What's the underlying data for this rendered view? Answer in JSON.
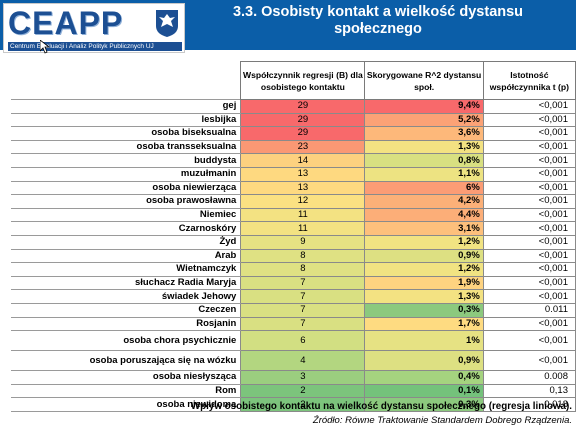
{
  "header": {
    "title_line1": "3.3. Osobisty kontakt a wielkość dystansu",
    "title_line2": "społecznego",
    "bg_color": "#0b5ea8"
  },
  "logo": {
    "text": "CEAPP",
    "subtitle": "Centrum Ewaluacji i Analiz Polityk Publicznych UJ",
    "icon": "eagle-emblem-icon"
  },
  "table": {
    "headers": {
      "coef": "Współczynnik regresji (B) dla osobistego kontaktu",
      "r2": "Skorygowane R^2 dystansu społ.",
      "p": "Istotność współczynnika t (p)"
    },
    "rows": [
      {
        "label": "gej",
        "coef": "29",
        "r2": "9,4%",
        "p": "<0,001",
        "coef_color": "#f8696b",
        "r2_color": "#f8696b"
      },
      {
        "label": "lesbijka",
        "coef": "29",
        "r2": "5,2%",
        "p": "<0,001",
        "coef_color": "#f8696b",
        "r2_color": "#fba276"
      },
      {
        "label": "osoba biseksualna",
        "coef": "29",
        "r2": "3,6%",
        "p": "<0,001",
        "coef_color": "#f8696b",
        "r2_color": "#fdb87a"
      },
      {
        "label": "osoba transseksualna",
        "coef": "23",
        "r2": "1,3%",
        "p": "<0,001",
        "coef_color": "#fa9874",
        "r2_color": "#f3e282"
      },
      {
        "label": "buddysta",
        "coef": "14",
        "r2": "0,8%",
        "p": "<0,001",
        "coef_color": "#fdd17f",
        "r2_color": "#d8e081"
      },
      {
        "label": "muzułmanin",
        "coef": "13",
        "r2": "1,1%",
        "p": "<0,001",
        "coef_color": "#fed980",
        "r2_color": "#ede382"
      },
      {
        "label": "osoba niewierząca",
        "coef": "13",
        "r2": "6%",
        "p": "<0,001",
        "coef_color": "#fed980",
        "r2_color": "#fb9c75"
      },
      {
        "label": "osoba prawosławna",
        "coef": "12",
        "r2": "4,2%",
        "p": "<0,001",
        "coef_color": "#fbe182",
        "r2_color": "#fcb078"
      },
      {
        "label": "Niemiec",
        "coef": "11",
        "r2": "4,4%",
        "p": "<0,001",
        "coef_color": "#f3e282",
        "r2_color": "#fcae78"
      },
      {
        "label": "Czarnoskóry",
        "coef": "11",
        "r2": "3,1%",
        "p": "<0,001",
        "coef_color": "#f3e282",
        "r2_color": "#fdc07c"
      },
      {
        "label": "Żyd",
        "coef": "9",
        "r2": "1,2%",
        "p": "<0,001",
        "coef_color": "#e6e283",
        "r2_color": "#f1e382"
      },
      {
        "label": "Arab",
        "coef": "8",
        "r2": "0,9%",
        "p": "<0,001",
        "coef_color": "#dfe183",
        "r2_color": "#dde082"
      },
      {
        "label": "Wietnamczyk",
        "coef": "8",
        "r2": "1,2%",
        "p": "<0,001",
        "coef_color": "#dfe183",
        "r2_color": "#f1e382"
      },
      {
        "label": "słuchacz Radia Maryja",
        "coef": "7",
        "r2": "1,9%",
        "p": "<0,001",
        "coef_color": "#d9e082",
        "r2_color": "#fed380"
      },
      {
        "label": "świadek Jehowy",
        "coef": "7",
        "r2": "1,3%",
        "p": "<0,001",
        "coef_color": "#d9e082",
        "r2_color": "#f3e282"
      },
      {
        "label": "Czeczen",
        "coef": "7",
        "r2": "0,3%",
        "p": "0.011",
        "coef_color": "#d9e082",
        "r2_color": "#8cc97e"
      },
      {
        "label": "Rosjanin",
        "coef": "7",
        "r2": "1,7%",
        "p": "<0,001",
        "coef_color": "#d9e082",
        "r2_color": "#fedb81"
      },
      {
        "label": "osoba chora psychicznie",
        "coef": "6",
        "r2": "1%",
        "p": "<0,001",
        "coef_color": "#d2df82",
        "r2_color": "#e6e283",
        "tall": true
      },
      {
        "label": "osoba poruszająca się na wózku",
        "coef": "4",
        "r2": "0,9%",
        "p": "<0,001",
        "coef_color": "#b3d680",
        "r2_color": "#dde082",
        "tall": true
      },
      {
        "label": "osoba niesłysząca",
        "coef": "3",
        "r2": "0,4%",
        "p": "0.008",
        "coef_color": "#9bce7f",
        "r2_color": "#a5d37f"
      },
      {
        "label": "Rom",
        "coef": "2",
        "r2": "0,1%",
        "p": "0,13",
        "coef_color": "#7cc47c",
        "r2_color": "#74c27b"
      },
      {
        "label": "osoba niewidoma",
        "coef": "2",
        "r2": "0,3%",
        "p": "0,018",
        "coef_color": "#7cc47c",
        "r2_color": "#8cc97e"
      }
    ]
  },
  "caption": "Wpływ osobistego kontaktu na wielkość dystansu społecznego (regresja liniowa).",
  "source": "Źródło: Równe Traktowanie Standardem Dobrego Rządzenia."
}
